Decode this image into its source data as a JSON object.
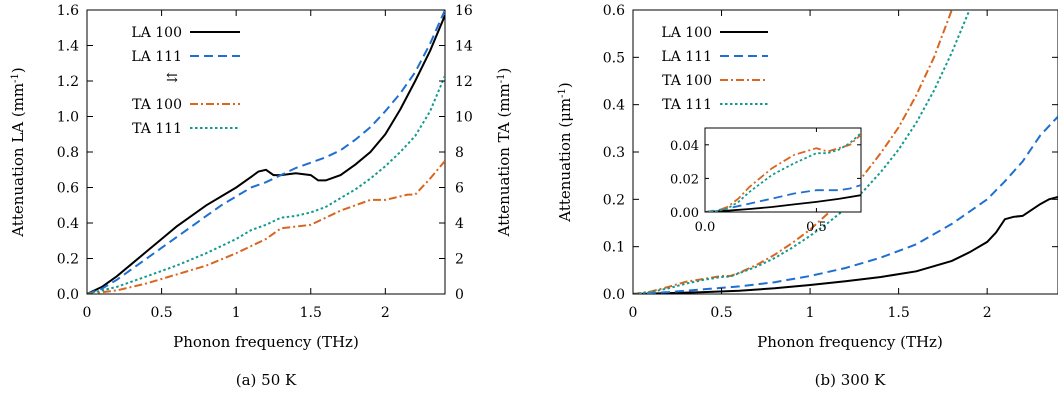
{
  "colors": {
    "LA 100": "#000000",
    "LA 111": "#1f6fd1",
    "TA 100": "#d9661f",
    "TA 111": "#139a8e"
  },
  "dash_styles": {
    "LA 100": "solid",
    "LA 111": "dash",
    "TA 100": "dash-dot",
    "TA 111": "dot"
  },
  "chart_data": [
    {
      "type": "line",
      "caption": "(a) 50 K",
      "xlabel": "Phonon frequency (THz)",
      "ylabel": "Attenuation LA (mm",
      "ylabel_sup": "-1",
      "ylabel_tail": ")",
      "y2label": "Attenuation TA (mm",
      "y2label_sup": "-1",
      "y2label_tail": ")",
      "xlim": [
        0,
        2.4
      ],
      "ylim": [
        0,
        1.6
      ],
      "y2lim": [
        0,
        16
      ],
      "xticks": [
        "0",
        "0.5",
        "1",
        "1.5",
        "2"
      ],
      "xtick_values": [
        0,
        0.5,
        1,
        1.5,
        2
      ],
      "yticks": [
        "0.0",
        "0.2",
        "0.4",
        "0.6",
        "0.8",
        "1.0",
        "1.2",
        "1.4",
        "1.6"
      ],
      "ytick_values": [
        0,
        0.2,
        0.4,
        0.6,
        0.8,
        1.0,
        1.2,
        1.4,
        1.6
      ],
      "y2ticks": [
        "0",
        "2",
        "4",
        "6",
        "8",
        "10",
        "12",
        "14",
        "16"
      ],
      "y2tick_values": [
        0,
        2,
        4,
        6,
        8,
        10,
        12,
        14,
        16
      ],
      "axis_switch_symbol": "⇆",
      "legend_position": "top-left",
      "series": [
        {
          "name": "LA 100",
          "axis": "left",
          "x": [
            0,
            0.1,
            0.2,
            0.3,
            0.4,
            0.5,
            0.6,
            0.7,
            0.8,
            0.9,
            1.0,
            1.1,
            1.15,
            1.2,
            1.25,
            1.3,
            1.4,
            1.5,
            1.55,
            1.6,
            1.7,
            1.8,
            1.9,
            2.0,
            2.1,
            2.2,
            2.3,
            2.4
          ],
          "y": [
            0,
            0.04,
            0.1,
            0.17,
            0.24,
            0.31,
            0.38,
            0.44,
            0.5,
            0.55,
            0.6,
            0.66,
            0.69,
            0.7,
            0.67,
            0.67,
            0.68,
            0.67,
            0.64,
            0.64,
            0.67,
            0.73,
            0.8,
            0.9,
            1.04,
            1.2,
            1.37,
            1.57
          ]
        },
        {
          "name": "LA 111",
          "axis": "left",
          "x": [
            0,
            0.1,
            0.2,
            0.3,
            0.4,
            0.5,
            0.6,
            0.7,
            0.8,
            0.9,
            1.0,
            1.1,
            1.2,
            1.3,
            1.4,
            1.5,
            1.6,
            1.7,
            1.8,
            1.9,
            2.0,
            2.1,
            2.2,
            2.3,
            2.4
          ],
          "y": [
            0,
            0.03,
            0.08,
            0.14,
            0.2,
            0.26,
            0.32,
            0.38,
            0.44,
            0.5,
            0.55,
            0.6,
            0.63,
            0.67,
            0.71,
            0.74,
            0.77,
            0.81,
            0.87,
            0.94,
            1.03,
            1.13,
            1.25,
            1.41,
            1.6
          ]
        },
        {
          "name": "TA 100",
          "axis": "right",
          "x": [
            0,
            0.2,
            0.4,
            0.6,
            0.8,
            1.0,
            1.1,
            1.2,
            1.3,
            1.4,
            1.5,
            1.6,
            1.7,
            1.8,
            1.9,
            2.0,
            2.1,
            2.15,
            2.2,
            2.3,
            2.4
          ],
          "y": [
            0,
            0.2,
            0.6,
            1.1,
            1.6,
            2.3,
            2.7,
            3.1,
            3.7,
            3.8,
            3.9,
            4.3,
            4.7,
            5.0,
            5.3,
            5.3,
            5.5,
            5.6,
            5.6,
            6.5,
            7.5
          ]
        },
        {
          "name": "TA 111",
          "axis": "right",
          "x": [
            0,
            0.2,
            0.4,
            0.6,
            0.8,
            1.0,
            1.1,
            1.2,
            1.3,
            1.4,
            1.5,
            1.6,
            1.7,
            1.8,
            1.9,
            2.0,
            2.1,
            2.2,
            2.3,
            2.4
          ],
          "y": [
            0,
            0.4,
            1.0,
            1.6,
            2.3,
            3.1,
            3.6,
            3.9,
            4.3,
            4.4,
            4.6,
            4.9,
            5.4,
            5.9,
            6.5,
            7.2,
            8.0,
            8.9,
            10.3,
            12.3
          ]
        }
      ]
    },
    {
      "type": "line",
      "caption": "(b) 300 K",
      "xlabel": "Phonon frequency (THz)",
      "ylabel": "Attenuation (μm",
      "ylabel_sup": "-1",
      "ylabel_tail": ")",
      "xlim": [
        0,
        2.4
      ],
      "ylim": [
        0,
        0.6
      ],
      "xticks": [
        "0",
        "0.5",
        "1",
        "1.5",
        "2"
      ],
      "xtick_values": [
        0,
        0.5,
        1,
        1.5,
        2
      ],
      "yticks": [
        "0.0",
        "0.1",
        "0.2",
        "0.3",
        "0.4",
        "0.5",
        "0.6"
      ],
      "ytick_values": [
        0,
        0.1,
        0.2,
        0.3,
        0.4,
        0.5,
        0.6
      ],
      "legend_position": "top-left",
      "series": [
        {
          "name": "LA 100",
          "x": [
            0,
            0.2,
            0.4,
            0.6,
            0.8,
            1.0,
            1.2,
            1.4,
            1.6,
            1.8,
            1.9,
            2.0,
            2.05,
            2.1,
            2.15,
            2.2,
            2.3,
            2.35,
            2.4
          ],
          "y": [
            0,
            0.002,
            0.004,
            0.007,
            0.012,
            0.019,
            0.027,
            0.036,
            0.048,
            0.07,
            0.088,
            0.11,
            0.13,
            0.158,
            0.163,
            0.165,
            0.19,
            0.2,
            0.205
          ]
        },
        {
          "name": "LA 111",
          "x": [
            0,
            0.2,
            0.4,
            0.6,
            0.8,
            1.0,
            1.2,
            1.4,
            1.6,
            1.8,
            2.0,
            2.1,
            2.2,
            2.3,
            2.4
          ],
          "y": [
            0,
            0.004,
            0.01,
            0.016,
            0.025,
            0.038,
            0.055,
            0.077,
            0.105,
            0.148,
            0.2,
            0.238,
            0.28,
            0.335,
            0.375
          ]
        },
        {
          "name": "TA 100",
          "x": [
            0,
            0.1,
            0.2,
            0.3,
            0.4,
            0.5,
            0.55,
            0.6,
            0.7,
            0.8,
            0.9,
            1.0,
            1.1,
            1.2,
            1.3,
            1.4,
            1.5,
            1.6,
            1.7,
            1.8
          ],
          "y": [
            0,
            0.005,
            0.015,
            0.026,
            0.032,
            0.038,
            0.038,
            0.045,
            0.062,
            0.083,
            0.108,
            0.136,
            0.17,
            0.207,
            0.25,
            0.298,
            0.352,
            0.42,
            0.5,
            0.6
          ]
        },
        {
          "name": "TA 111",
          "x": [
            0,
            0.1,
            0.2,
            0.3,
            0.4,
            0.5,
            0.55,
            0.6,
            0.7,
            0.8,
            0.9,
            1.0,
            1.1,
            1.2,
            1.3,
            1.4,
            1.5,
            1.6,
            1.7,
            1.8,
            1.9
          ],
          "y": [
            0,
            0.004,
            0.012,
            0.022,
            0.03,
            0.036,
            0.037,
            0.044,
            0.058,
            0.076,
            0.098,
            0.123,
            0.15,
            0.18,
            0.217,
            0.258,
            0.305,
            0.362,
            0.43,
            0.51,
            0.6
          ]
        }
      ],
      "inset": {
        "xlim": [
          0,
          0.7
        ],
        "ylim": [
          0,
          0.05
        ],
        "xticks": [
          "0.0",
          "0.5"
        ],
        "xtick_values": [
          0,
          0.5
        ],
        "yticks": [
          "0.00",
          "0.02",
          "0.04"
        ],
        "ytick_values": [
          0,
          0.02,
          0.04
        ],
        "series": [
          {
            "name": "LA 100",
            "x": [
              0,
              0.1,
              0.2,
              0.3,
              0.4,
              0.5,
              0.6,
              0.7
            ],
            "y": [
              0,
              0.0008,
              0.0018,
              0.003,
              0.0045,
              0.006,
              0.0078,
              0.01
            ]
          },
          {
            "name": "LA 111",
            "x": [
              0,
              0.1,
              0.2,
              0.3,
              0.4,
              0.5,
              0.55,
              0.6,
              0.65,
              0.7
            ],
            "y": [
              0,
              0.002,
              0.005,
              0.008,
              0.011,
              0.013,
              0.013,
              0.013,
              0.014,
              0.016
            ]
          },
          {
            "name": "TA 100",
            "x": [
              0,
              0.05,
              0.1,
              0.15,
              0.2,
              0.3,
              0.4,
              0.5,
              0.55,
              0.6,
              0.65,
              0.7
            ],
            "y": [
              0,
              0.0005,
              0.003,
              0.008,
              0.015,
              0.026,
              0.034,
              0.038,
              0.036,
              0.038,
              0.04,
              0.046
            ]
          },
          {
            "name": "TA 111",
            "x": [
              0,
              0.05,
              0.1,
              0.15,
              0.2,
              0.3,
              0.4,
              0.5,
              0.55,
              0.6,
              0.65,
              0.7
            ],
            "y": [
              0,
              0.0005,
              0.002,
              0.006,
              0.012,
              0.022,
              0.029,
              0.035,
              0.035,
              0.037,
              0.041,
              0.047
            ]
          }
        ]
      }
    }
  ]
}
